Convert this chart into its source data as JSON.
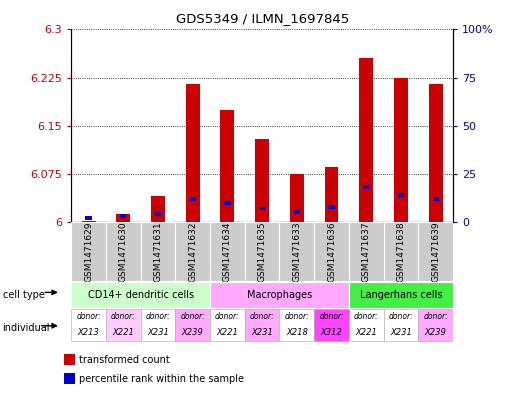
{
  "title": "GDS5349 / ILMN_1697845",
  "samples": [
    "GSM1471629",
    "GSM1471630",
    "GSM1471631",
    "GSM1471632",
    "GSM1471634",
    "GSM1471635",
    "GSM1471633",
    "GSM1471636",
    "GSM1471637",
    "GSM1471638",
    "GSM1471639"
  ],
  "red_values": [
    6.002,
    6.013,
    6.04,
    6.215,
    6.175,
    6.13,
    6.075,
    6.085,
    6.255,
    6.225,
    6.215
  ],
  "blue_pct": [
    2,
    3,
    4,
    12,
    10,
    7,
    5,
    8,
    18,
    14,
    12
  ],
  "ymin": 6.0,
  "ymax": 6.3,
  "yticks": [
    6.0,
    6.075,
    6.15,
    6.225,
    6.3
  ],
  "ytick_labels": [
    "6",
    "6.075",
    "6.15",
    "6.225",
    "6.3"
  ],
  "right_yticks": [
    0,
    25,
    50,
    75,
    100
  ],
  "right_ytick_labels": [
    "0",
    "25",
    "50",
    "75",
    "100%"
  ],
  "cell_groups": [
    {
      "label": "CD14+ dendritic cells",
      "start": 0,
      "end": 4,
      "color": "#ccffcc"
    },
    {
      "label": "Macrophages",
      "start": 4,
      "end": 8,
      "color": "#ffaaff"
    },
    {
      "label": "Langerhans cells",
      "start": 8,
      "end": 11,
      "color": "#44ee44"
    }
  ],
  "donors": [
    "X213",
    "X221",
    "X231",
    "X239",
    "X221",
    "X231",
    "X218",
    "X312",
    "X221",
    "X231",
    "X239"
  ],
  "donor_colors": [
    "#ffffff",
    "#ffccff",
    "#ffffff",
    "#ffaaff",
    "#ffffff",
    "#ffaaff",
    "#ffffff",
    "#ff44ff",
    "#ffffff",
    "#ffffff",
    "#ffaaff"
  ],
  "bar_color_red": "#cc0000",
  "bar_color_blue": "#0000cc",
  "tick_color_left": "#cc0000",
  "tick_color_right": "#0000bb",
  "sample_bg": "#cccccc",
  "bar_width": 0.4
}
